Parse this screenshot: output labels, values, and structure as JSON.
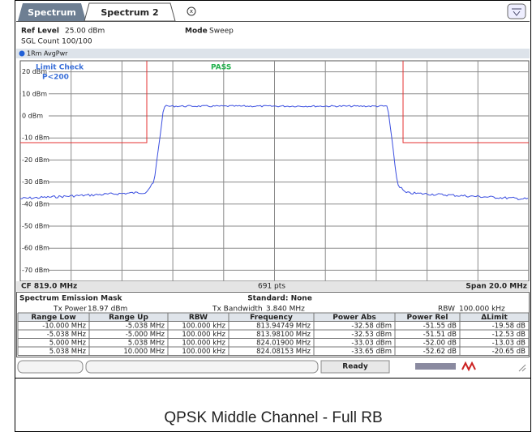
{
  "tabs": [
    "Spectrum",
    "Spectrum 2"
  ],
  "header": {
    "ref_label": "Ref Level",
    "ref_value": "25.00 dBm",
    "mode_label": "Mode",
    "mode_value": "Sweep",
    "sgl": "SGL Count 100/100",
    "trace": "1Rm AvgPwr"
  },
  "plot": {
    "y_labels": [
      "20 dBm",
      "10 dBm",
      "0 dBm",
      "-10 dBm",
      "-20 dBm",
      "-30 dBm",
      "-40 dBm",
      "-50 dBm",
      "-60 dBm",
      "-70 dBm"
    ],
    "limit_check": "Limit Check",
    "limit": "P<200",
    "result": "PASS"
  },
  "footer": {
    "cf": "CF 819.0 MHz",
    "pts": "691 pts",
    "span": "Span 20.0 MHz"
  },
  "summary": {
    "title": "Spectrum Emission Mask",
    "standard": "Standard: None",
    "tx_power_label": "Tx Power",
    "tx_power": "18.97 dBm",
    "tx_bw_label": "Tx Bandwidth",
    "tx_bw": "3.840 MHz",
    "rbw_label": "RBW",
    "rbw": "100.000 kHz"
  },
  "table": {
    "columns": [
      "Range Low",
      "Range Up",
      "RBW",
      "Frequency",
      "Power Abs",
      "Power Rel",
      "ΔLimit"
    ],
    "rows": [
      [
        "-10.000 MHz",
        "-5.038 MHz",
        "100.000 kHz",
        "813.94749 MHz",
        "-32.58 dBm",
        "-51.55 dB",
        "-19.58 dB"
      ],
      [
        "-5.038 MHz",
        "-5.000 MHz",
        "100.000 kHz",
        "813.98100 MHz",
        "-32.53 dBm",
        "-51.51 dB",
        "-12.53 dB"
      ],
      [
        "5.000 MHz",
        "5.038 MHz",
        "100.000 kHz",
        "824.01900 MHz",
        "-33.03 dBm",
        "-52.00 dB",
        "-13.03 dB"
      ],
      [
        "5.038 MHz",
        "10.000 MHz",
        "100.000 kHz",
        "824.08153 MHz",
        "-33.65 dBm",
        "-52.62 dB",
        "-20.65 dB"
      ]
    ]
  },
  "status": "Ready",
  "caption": "QPSK Middle Channel - Full RB"
}
